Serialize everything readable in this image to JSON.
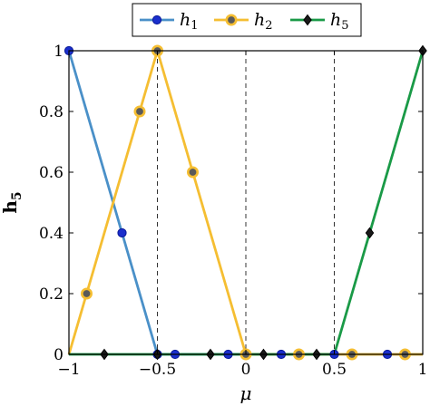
{
  "chart_data": {
    "type": "line",
    "xlabel": "μ",
    "ylabel": "h",
    "ylabel_subscript": "5",
    "xlim": [
      -1,
      1
    ],
    "ylim": [
      0,
      1
    ],
    "xticks": [
      -1,
      -0.5,
      0,
      0.5,
      1
    ],
    "xtick_labels": [
      "−1",
      "−0.5",
      "0",
      "0.5",
      "1"
    ],
    "yticks": [
      0,
      0.2,
      0.4,
      0.6,
      0.8,
      1
    ],
    "ytick_labels": [
      "0",
      "0.2",
      "0.4",
      "0.6",
      "0.8",
      "1"
    ],
    "grid": false,
    "reference_lines_x": [
      -0.5,
      0,
      0.5
    ],
    "legend_position": "top-center",
    "series": [
      {
        "name": "h",
        "name_subscript": "1",
        "color": "#4a90c8",
        "marker": "circle",
        "marker_color": "#1a2ecc",
        "line": [
          [
            -1,
            1
          ],
          [
            -0.5,
            0
          ],
          [
            1,
            0
          ]
        ],
        "markers": [
          [
            -1,
            1
          ],
          [
            -0.7,
            0.4
          ],
          [
            -0.5,
            0
          ],
          [
            -0.4,
            0
          ],
          [
            -0.1,
            0
          ],
          [
            0.2,
            0
          ],
          [
            0.5,
            0
          ],
          [
            0.8,
            0
          ]
        ]
      },
      {
        "name": "h",
        "name_subscript": "2",
        "color": "#f5be32",
        "marker": "circle-ring",
        "marker_color": "#5a5a5a",
        "line": [
          [
            -1,
            0
          ],
          [
            -0.5,
            1
          ],
          [
            0,
            0
          ],
          [
            1,
            0
          ]
        ],
        "markers": [
          [
            -0.9,
            0.2
          ],
          [
            -0.6,
            0.8
          ],
          [
            -0.5,
            1
          ],
          [
            -0.3,
            0.6
          ],
          [
            0,
            0
          ],
          [
            0.3,
            0
          ],
          [
            0.6,
            0
          ],
          [
            0.9,
            0
          ]
        ]
      },
      {
        "name": "h",
        "name_subscript": "5",
        "color": "#1a9a47",
        "marker": "diamond",
        "marker_color": "#1a1a1a",
        "line": [
          [
            -1,
            0
          ],
          [
            0.5,
            0
          ],
          [
            1,
            1
          ]
        ],
        "markers": [
          [
            -0.8,
            0
          ],
          [
            -0.5,
            0
          ],
          [
            -0.2,
            0
          ],
          [
            0.1,
            0
          ],
          [
            0.4,
            0
          ],
          [
            0.7,
            0.4
          ],
          [
            1,
            1
          ]
        ]
      }
    ]
  }
}
